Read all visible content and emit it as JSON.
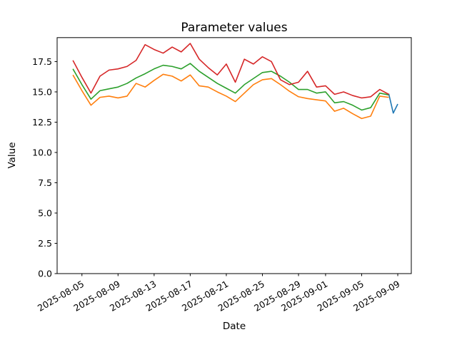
{
  "chart_data": {
    "type": "line",
    "title": "Parameter values",
    "xlabel": "Date",
    "ylabel": "Value",
    "background": "#ffffff",
    "axis_color": "#000000",
    "grid": false,
    "legend": "none",
    "x_unit": "days since 2025-08-04",
    "start_date": "2025-08-04",
    "end_date": "2025-09-09",
    "xlim_days": [
      -1.75,
      37.5
    ],
    "ylim": [
      0,
      19.48
    ],
    "x_tick_days": [
      1,
      5,
      9,
      13,
      17,
      21,
      25,
      28,
      32,
      36
    ],
    "x_tick_labels": [
      "2025-08-05",
      "2025-08-09",
      "2025-08-13",
      "2025-08-17",
      "2025-08-21",
      "2025-08-25",
      "2025-08-29",
      "2025-09-01",
      "2025-09-05",
      "2025-09-09"
    ],
    "x_tick_rotation_deg": 30,
    "y_ticks": [
      0.0,
      2.5,
      5.0,
      7.5,
      10.0,
      12.5,
      15.0,
      17.5
    ],
    "y_tick_labels": [
      "0.0",
      "2.5",
      "5.0",
      "7.5",
      "10.0",
      "12.5",
      "15.0",
      "17.5"
    ],
    "series": [
      {
        "name": "blue",
        "color": "#1f77b4",
        "x_days": [
          35,
          35.5,
          36
        ],
        "values": [
          14.85,
          13.25,
          14.0
        ]
      },
      {
        "name": "orange",
        "color": "#ff7f0e",
        "x_days": [
          0,
          1,
          2,
          3,
          4,
          5,
          6,
          7,
          8,
          9,
          10,
          11,
          12,
          13,
          14,
          15,
          16,
          17,
          18,
          19,
          20,
          21,
          22,
          23,
          24,
          25,
          26,
          27,
          28,
          29,
          30,
          31,
          32,
          33,
          34,
          35
        ],
        "values": [
          16.4,
          15.1,
          13.9,
          14.55,
          14.65,
          14.5,
          14.65,
          15.7,
          15.4,
          15.95,
          16.45,
          16.3,
          15.9,
          16.4,
          15.5,
          15.4,
          15.0,
          14.65,
          14.2,
          14.9,
          15.6,
          16.0,
          16.1,
          15.6,
          15.05,
          14.6,
          14.45,
          14.35,
          14.25,
          13.4,
          13.65,
          13.2,
          12.8,
          13.0,
          14.65,
          14.55
        ]
      },
      {
        "name": "green",
        "color": "#2ca02c",
        "x_days": [
          0,
          1,
          2,
          3,
          4,
          5,
          6,
          7,
          8,
          9,
          10,
          11,
          12,
          13,
          14,
          15,
          16,
          17,
          18,
          19,
          20,
          21,
          22,
          23,
          24,
          25,
          26,
          27,
          28,
          29,
          30,
          31,
          32,
          33,
          34,
          35
        ],
        "values": [
          16.9,
          15.6,
          14.4,
          15.1,
          15.25,
          15.4,
          15.7,
          16.15,
          16.5,
          16.9,
          17.2,
          17.1,
          16.9,
          17.35,
          16.7,
          16.2,
          15.7,
          15.3,
          14.9,
          15.6,
          16.1,
          16.6,
          16.7,
          16.3,
          15.8,
          15.2,
          15.2,
          14.9,
          15.0,
          14.1,
          14.2,
          13.9,
          13.5,
          13.7,
          14.9,
          14.75
        ]
      },
      {
        "name": "red",
        "color": "#d62728",
        "x_days": [
          0,
          1,
          2,
          3,
          4,
          5,
          6,
          7,
          8,
          9,
          10,
          11,
          12,
          13,
          14,
          15,
          16,
          17,
          18,
          19,
          20,
          21,
          22,
          23,
          24,
          25,
          26,
          27,
          28,
          29,
          30,
          31,
          32,
          33,
          34,
          35
        ],
        "values": [
          17.6,
          16.2,
          14.9,
          16.3,
          16.8,
          16.9,
          17.1,
          17.6,
          18.9,
          18.5,
          18.2,
          18.7,
          18.3,
          19.0,
          17.7,
          17.0,
          16.4,
          17.3,
          15.8,
          17.7,
          17.3,
          17.9,
          17.5,
          16.0,
          15.6,
          15.8,
          16.7,
          15.4,
          15.5,
          14.8,
          15.0,
          14.7,
          14.5,
          14.6,
          15.2,
          14.8
        ]
      }
    ]
  }
}
